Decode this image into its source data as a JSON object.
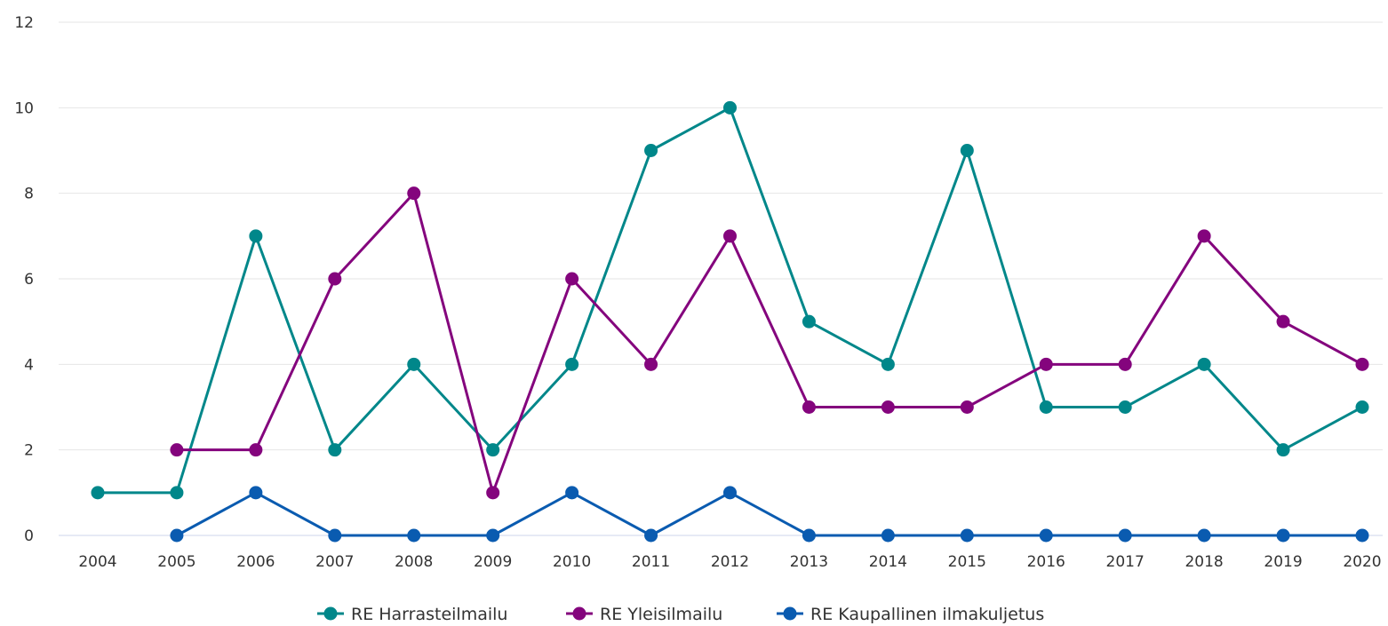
{
  "chart_data": {
    "type": "line",
    "title": "",
    "xlabel": "",
    "ylabel": "",
    "categories": [
      "2004",
      "2005",
      "2006",
      "2007",
      "2008",
      "2009",
      "2010",
      "2011",
      "2012",
      "2013",
      "2014",
      "2015",
      "2016",
      "2017",
      "2018",
      "2019",
      "2020"
    ],
    "ylim": [
      0,
      12
    ],
    "y_ticks": [
      0,
      2,
      4,
      6,
      8,
      10,
      12
    ],
    "grid": true,
    "legend_position": "bottom-center",
    "series": [
      {
        "name": "RE Harrasteilmailu",
        "color": "#00878a",
        "values": [
          1,
          1,
          7,
          2,
          4,
          2,
          4,
          9,
          10,
          5,
          4,
          9,
          3,
          3,
          4,
          2,
          3
        ]
      },
      {
        "name": "RE Yleisilmailu",
        "color": "#84047d",
        "values": [
          null,
          2,
          2,
          6,
          8,
          1,
          6,
          4,
          7,
          3,
          3,
          3,
          4,
          4,
          7,
          5,
          4
        ]
      },
      {
        "name": "RE Kaupallinen ilmakuljetus",
        "color": "#0a5bb0",
        "values": [
          null,
          0,
          1,
          0,
          0,
          0,
          1,
          0,
          1,
          0,
          0,
          0,
          0,
          0,
          0,
          0,
          0
        ]
      }
    ]
  }
}
